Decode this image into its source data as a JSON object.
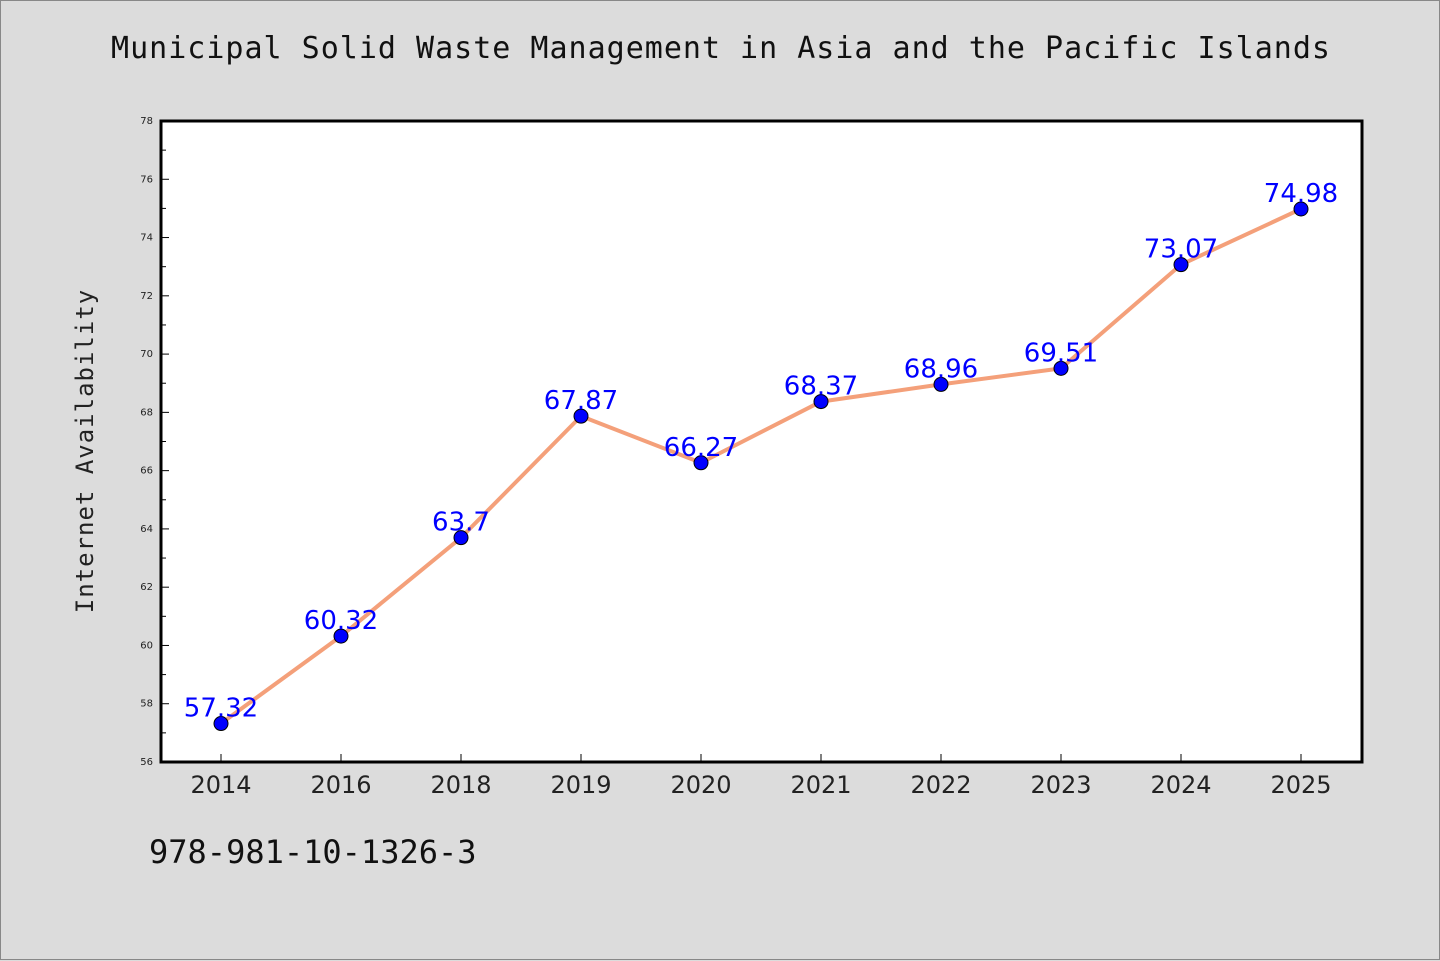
{
  "chart_data": {
    "type": "line",
    "title": "Municipal Solid Waste Management in Asia and the Pacific Islands",
    "xlabel": "",
    "ylabel": "Internet Availability",
    "categories": [
      "2014",
      "2016",
      "2018",
      "2019",
      "2020",
      "2021",
      "2022",
      "2023",
      "2024",
      "2025"
    ],
    "series": [
      {
        "values": [
          57.32,
          60.32,
          63.7,
          67.87,
          66.27,
          68.37,
          68.96,
          69.51,
          73.07,
          74.98
        ]
      }
    ],
    "data_labels": [
      "57.32",
      "60.32",
      "63.7",
      "67.87",
      "66.27",
      "68.37",
      "68.96",
      "69.51",
      "73.07",
      "74.98"
    ],
    "ylim": [
      56,
      78
    ],
    "y_ticks": [
      56,
      58,
      60,
      62,
      64,
      66,
      68,
      70,
      72,
      74,
      76,
      78
    ],
    "grid": false,
    "legend": "none",
    "colors": {
      "line": "#f4a07a",
      "marker": "#0000ff",
      "label": "#0000ff",
      "background": "#dcdcdc",
      "plot_area": "#ffffff"
    }
  },
  "footer": {
    "isbn": "978-981-10-1326-3"
  }
}
